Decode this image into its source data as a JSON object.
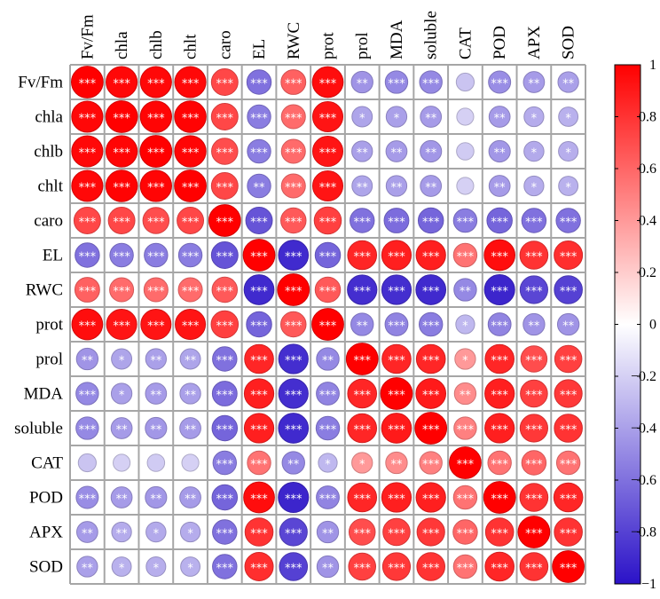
{
  "chart_data": {
    "type": "heatmap",
    "style": "correlation-circles",
    "variables": [
      "Fv/Fm",
      "chla",
      "chlb",
      "chlt",
      "caro",
      "EL",
      "RWC",
      "prot",
      "prol",
      "MDA",
      "soluble",
      "CAT",
      "POD",
      "APX",
      "SOD"
    ],
    "values": [
      [
        1.0,
        0.97,
        0.97,
        0.97,
        0.72,
        -0.6,
        0.62,
        0.95,
        -0.45,
        -0.5,
        -0.5,
        -0.25,
        -0.48,
        -0.42,
        -0.4
      ],
      [
        0.97,
        1.0,
        0.98,
        0.99,
        0.72,
        -0.55,
        0.58,
        0.92,
        -0.38,
        -0.4,
        -0.42,
        -0.2,
        -0.42,
        -0.35,
        -0.33
      ],
      [
        0.97,
        0.98,
        1.0,
        0.98,
        0.7,
        -0.55,
        0.58,
        0.92,
        -0.4,
        -0.42,
        -0.44,
        -0.22,
        -0.44,
        -0.36,
        -0.34
      ],
      [
        0.97,
        0.99,
        0.98,
        1.0,
        0.72,
        -0.55,
        0.58,
        0.92,
        -0.38,
        -0.4,
        -0.42,
        -0.2,
        -0.42,
        -0.35,
        -0.33
      ],
      [
        0.72,
        0.72,
        0.7,
        0.72,
        1.0,
        -0.72,
        0.65,
        0.75,
        -0.6,
        -0.62,
        -0.65,
        -0.55,
        -0.65,
        -0.6,
        -0.6
      ],
      [
        -0.6,
        -0.55,
        -0.55,
        -0.55,
        -0.72,
        1.0,
        -0.9,
        -0.65,
        0.85,
        0.88,
        0.88,
        0.55,
        0.95,
        0.8,
        0.82
      ],
      [
        0.62,
        0.58,
        0.58,
        0.58,
        0.65,
        -0.9,
        1.0,
        0.65,
        -0.88,
        -0.88,
        -0.9,
        -0.5,
        -0.92,
        -0.78,
        -0.8
      ],
      [
        0.95,
        0.92,
        0.92,
        0.92,
        0.75,
        -0.65,
        0.65,
        1.0,
        -0.5,
        -0.52,
        -0.55,
        -0.3,
        -0.52,
        -0.45,
        -0.45
      ],
      [
        -0.45,
        -0.38,
        -0.4,
        -0.38,
        -0.6,
        0.85,
        -0.88,
        -0.5,
        1.0,
        0.85,
        0.85,
        0.4,
        0.85,
        0.7,
        0.75
      ],
      [
        -0.5,
        -0.4,
        -0.42,
        -0.4,
        -0.62,
        0.88,
        -0.88,
        -0.52,
        0.85,
        1.0,
        0.9,
        0.45,
        0.88,
        0.75,
        0.78
      ],
      [
        -0.5,
        -0.42,
        -0.44,
        -0.42,
        -0.65,
        0.88,
        -0.9,
        -0.55,
        0.85,
        0.9,
        1.0,
        0.5,
        0.88,
        0.78,
        0.8
      ],
      [
        -0.25,
        -0.2,
        -0.22,
        -0.2,
        -0.55,
        0.55,
        -0.5,
        -0.3,
        0.4,
        0.45,
        0.5,
        1.0,
        0.55,
        0.6,
        0.55
      ],
      [
        -0.48,
        -0.42,
        -0.44,
        -0.42,
        -0.65,
        0.95,
        -0.92,
        -0.52,
        0.85,
        0.88,
        0.88,
        0.55,
        1.0,
        0.8,
        0.85
      ],
      [
        -0.42,
        -0.35,
        -0.36,
        -0.35,
        -0.6,
        0.8,
        -0.78,
        -0.45,
        0.7,
        0.75,
        0.78,
        0.6,
        0.8,
        1.0,
        0.8
      ],
      [
        -0.4,
        -0.33,
        -0.34,
        -0.33,
        -0.6,
        0.82,
        -0.8,
        -0.45,
        0.75,
        0.78,
        0.8,
        0.55,
        0.85,
        0.8,
        1.0
      ]
    ],
    "significance": [
      [
        "***",
        "***",
        "***",
        "***",
        "***",
        "***",
        "***",
        "***",
        "**",
        "***",
        "***",
        "",
        "***",
        "**",
        "**"
      ],
      [
        "***",
        "***",
        "***",
        "***",
        "***",
        "***",
        "***",
        "***",
        "*",
        "*",
        "**",
        "",
        "**",
        "*",
        "*"
      ],
      [
        "***",
        "***",
        "***",
        "***",
        "***",
        "***",
        "***",
        "***",
        "**",
        "**",
        "**",
        "",
        "**",
        "*",
        "*"
      ],
      [
        "***",
        "***",
        "***",
        "***",
        "***",
        "**",
        "***",
        "***",
        "**",
        "**",
        "**",
        "",
        "**",
        "*",
        "*"
      ],
      [
        "***",
        "***",
        "***",
        "***",
        "***",
        "***",
        "***",
        "***",
        "***",
        "***",
        "***",
        "***",
        "***",
        "***",
        "***"
      ],
      [
        "***",
        "***",
        "***",
        "***",
        "***",
        "***",
        "***",
        "***",
        "***",
        "***",
        "***",
        "***",
        "***",
        "***",
        "***"
      ],
      [
        "***",
        "***",
        "***",
        "***",
        "***",
        "***",
        "***",
        "***",
        "***",
        "***",
        "***",
        "**",
        "***",
        "***",
        "***"
      ],
      [
        "***",
        "***",
        "***",
        "***",
        "***",
        "***",
        "***",
        "***",
        "**",
        "***",
        "***",
        "*",
        "***",
        "**",
        "**"
      ],
      [
        "**",
        "*",
        "**",
        "**",
        "***",
        "***",
        "***",
        "**",
        "***",
        "***",
        "***",
        "*",
        "***",
        "***",
        "***"
      ],
      [
        "***",
        "*",
        "**",
        "**",
        "***",
        "***",
        "***",
        "***",
        "***",
        "***",
        "***",
        "**",
        "***",
        "***",
        "***"
      ],
      [
        "***",
        "**",
        "**",
        "**",
        "***",
        "***",
        "***",
        "***",
        "***",
        "***",
        "***",
        "***",
        "***",
        "***",
        "***"
      ],
      [
        "",
        "",
        "",
        "",
        "***",
        "***",
        "**",
        "*",
        "*",
        "**",
        "***",
        "***",
        "***",
        "***",
        "***"
      ],
      [
        "***",
        "**",
        "**",
        "**",
        "***",
        "***",
        "***",
        "***",
        "***",
        "***",
        "***",
        "***",
        "***",
        "***",
        "***"
      ],
      [
        "**",
        "**",
        "*",
        "*",
        "***",
        "***",
        "***",
        "**",
        "***",
        "***",
        "***",
        "***",
        "***",
        "***",
        "***"
      ],
      [
        "**",
        "*",
        "*",
        "*",
        "***",
        "***",
        "***",
        "**",
        "***",
        "***",
        "***",
        "***",
        "***",
        "***",
        "***"
      ]
    ],
    "colorbar": {
      "range": [
        -1,
        1
      ],
      "ticks": [
        1,
        0.8,
        0.6,
        0.4,
        0.2,
        0,
        -0.2,
        -0.4,
        -0.6,
        -0.8,
        -1
      ],
      "tick_labels": [
        "1",
        "0.8",
        "0.6",
        "0.4",
        "0.2",
        "0",
        "−0.2",
        "−0.4",
        "−0.6",
        "−0.8",
        "−1"
      ],
      "low_color": "#2b12c8",
      "mid_color": "#ffffff",
      "high_color": "#ff0000"
    },
    "grid_color": "#a6a6a6",
    "legend_position": "right"
  }
}
